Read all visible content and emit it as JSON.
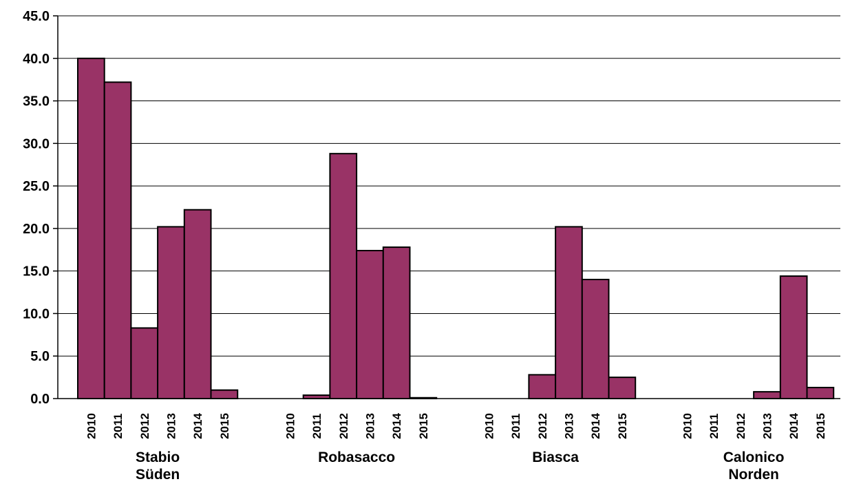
{
  "chart_data": {
    "type": "bar",
    "ylim": [
      0,
      45
    ],
    "yticks": [
      "0.0",
      "5.0",
      "10.0",
      "15.0",
      "20.0",
      "25.0",
      "30.0",
      "35.0",
      "40.0",
      "45.0"
    ],
    "grid": true,
    "bar_color": "#993366",
    "groups": [
      {
        "label_lines": [
          "Stabio",
          "Süden"
        ],
        "categories": [
          "2010",
          "2011",
          "2012",
          "2013",
          "2014",
          "2015"
        ],
        "values": [
          40.0,
          37.2,
          8.3,
          20.2,
          22.2,
          1.0
        ]
      },
      {
        "label_lines": [
          "Robasacco"
        ],
        "categories": [
          "2010",
          "2011",
          "2012",
          "2013",
          "2014",
          "2015"
        ],
        "values": [
          0.0,
          0.4,
          28.8,
          17.4,
          17.8,
          0.1
        ]
      },
      {
        "label_lines": [
          "Biasca"
        ],
        "categories": [
          "2010",
          "2011",
          "2012",
          "2013",
          "2014",
          "2015"
        ],
        "values": [
          0.0,
          0.0,
          2.8,
          20.2,
          14.0,
          2.5
        ]
      },
      {
        "label_lines": [
          "Calonico",
          "Norden"
        ],
        "categories": [
          "2010",
          "2011",
          "2012",
          "2013",
          "2014",
          "2015"
        ],
        "values": [
          0.0,
          0.0,
          0.0,
          0.8,
          14.4,
          1.3
        ]
      }
    ]
  }
}
